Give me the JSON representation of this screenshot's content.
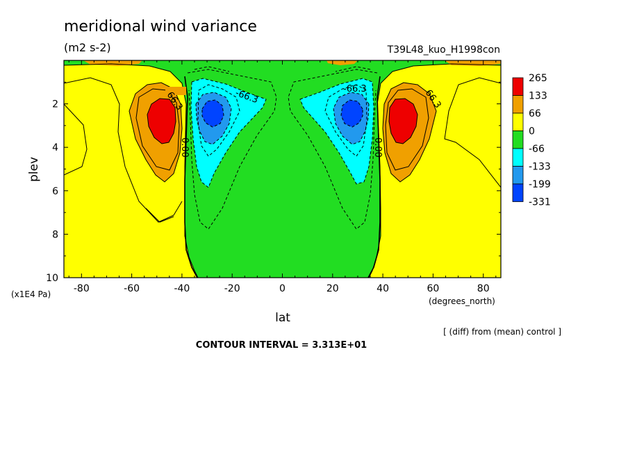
{
  "chart_data": {
    "type": "contour",
    "title": "meridional wind variance",
    "subtitle": "(m2 s-2)",
    "run_label": "T39L48_kuo_H1998con",
    "xlabel": "lat",
    "x_units": "(degrees_north)",
    "ylabel": "plev",
    "y_units": "(x1E4 Pa)",
    "xlim": [
      -87,
      87
    ],
    "ylim": [
      10,
      0
    ],
    "x_ticks": [
      -80,
      -60,
      -40,
      -20,
      0,
      20,
      40,
      60,
      80
    ],
    "x_tick_labels": [
      "-80",
      "-60",
      "-40",
      "-20",
      "0",
      "20",
      "40",
      "60",
      "80"
    ],
    "y_ticks": [
      2,
      4,
      6,
      8,
      10
    ],
    "y_tick_labels": [
      "2",
      "4",
      "6",
      "8",
      "10"
    ],
    "note": "[ (diff) from (mean) control ]",
    "contour_interval": "CONTOUR INTERVAL = 3.313E+01",
    "contour_labels": [
      "66.3",
      "-66.3",
      "0.00"
    ],
    "legend": {
      "placement": "right",
      "labels": [
        "265",
        "133",
        "66",
        "0",
        "-66",
        "-133",
        "-199",
        "-331"
      ],
      "colors": [
        "#ee0000",
        "#f0a000",
        "#ffff00",
        "#22dd22",
        "#00ffff",
        "#2299ee",
        "#0044ff"
      ]
    },
    "features": [
      {
        "kind": "max",
        "lat": -49,
        "plev": 2.6,
        "value": 265
      },
      {
        "kind": "max",
        "lat": 48,
        "plev": 2.6,
        "value": 265
      },
      {
        "kind": "min",
        "lat": -28,
        "plev": 2.5,
        "value": -331
      },
      {
        "kind": "min",
        "lat": 28,
        "plev": 2.5,
        "value": -331
      }
    ]
  }
}
